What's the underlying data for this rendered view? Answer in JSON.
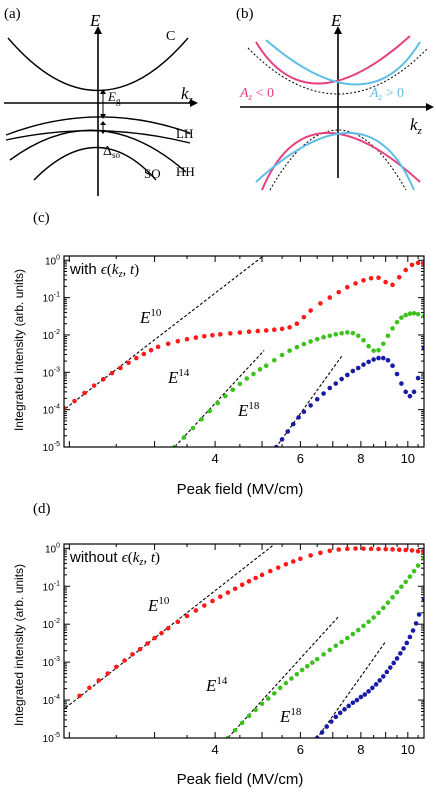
{
  "panels": {
    "a": {
      "label": "(a)",
      "axis_e": "E",
      "axis_k": "k",
      "axis_k_sub": "z",
      "band_c": "C",
      "band_lh": "LH",
      "band_hh": "HH",
      "band_so": "SO",
      "gap": "E",
      "gap_sub": "g",
      "split": "Δ",
      "split_sub": "so"
    },
    "b": {
      "label": "(b)",
      "axis_e": "E",
      "axis_k": "k",
      "axis_k_sub": "z",
      "left_label": "A",
      "left_label_sub": "z",
      "left_label_rel": " < 0",
      "right_label": "A",
      "right_label_sub": "z",
      "right_label_rel": " > 0"
    }
  },
  "colors": {
    "pink": "#e8407f",
    "blue": "#5cbfe6",
    "red": "#ff1a1a",
    "green": "#3cc21c",
    "navy": "#1a1aa8"
  },
  "chart_data": [
    {
      "panel": "(c)",
      "type": "scatter",
      "annotation": "with ϵ(k_z, t)",
      "annotation_parts": [
        "with ",
        "ϵ",
        "(",
        "k",
        "z",
        ", ",
        "t",
        ")"
      ],
      "xlabel": "Peak field (MV/cm)",
      "ylabel": "Integrated intensity (arb. units)",
      "xscale": "log",
      "yscale": "log",
      "xlim": [
        1.95,
        10.8
      ],
      "ylim": [
        1e-05,
        1.3
      ],
      "xticks": [
        4,
        6,
        8,
        10
      ],
      "yticks": [
        {
          "v": 1e-05,
          "b": "10",
          "e": "-5"
        },
        {
          "v": 0.0001,
          "b": "10",
          "e": "-4"
        },
        {
          "v": 0.001,
          "b": "10",
          "e": "-3"
        },
        {
          "v": 0.01,
          "b": "10",
          "e": "-2"
        },
        {
          "v": 0.1,
          "b": "10",
          "e": "-1"
        },
        {
          "v": 1,
          "b": "10",
          "e": "0"
        }
      ],
      "series": [
        {
          "name": "E10",
          "power": 10,
          "color": "#ff1a1a",
          "x": [
            1.95,
            2.05,
            2.15,
            2.25,
            2.35,
            2.45,
            2.55,
            2.65,
            2.75,
            2.85,
            2.95,
            3.05,
            3.2,
            3.35,
            3.5,
            3.65,
            3.8,
            3.95,
            4.1,
            4.3,
            4.5,
            4.7,
            4.9,
            5.1,
            5.3,
            5.5,
            5.7,
            5.9,
            6.1,
            6.3,
            6.6,
            6.9,
            7.2,
            7.5,
            7.8,
            8.1,
            8.4,
            8.7,
            9.0,
            9.3,
            9.6,
            9.9,
            10.2,
            10.5,
            10.8
          ],
          "y": [
            0.00011,
            0.00017,
            0.00028,
            0.00044,
            0.00065,
            0.00095,
            0.0013,
            0.0018,
            0.0024,
            0.0031,
            0.0039,
            0.0048,
            0.0058,
            0.0068,
            0.0077,
            0.0085,
            0.0092,
            0.0098,
            0.0104,
            0.011,
            0.0116,
            0.0122,
            0.0127,
            0.0132,
            0.0138,
            0.0146,
            0.016,
            0.02,
            0.03,
            0.045,
            0.07,
            0.1,
            0.14,
            0.19,
            0.24,
            0.29,
            0.33,
            0.34,
            0.26,
            0.22,
            0.35,
            0.55,
            0.75,
            0.85,
            0.8
          ]
        },
        {
          "name": "E14",
          "power": 14,
          "color": "#3cc21c",
          "x": [
            3.3,
            3.45,
            3.6,
            3.75,
            3.9,
            4.05,
            4.2,
            4.35,
            4.5,
            4.65,
            4.8,
            4.95,
            5.1,
            5.3,
            5.5,
            5.7,
            5.9,
            6.1,
            6.3,
            6.5,
            6.7,
            6.9,
            7.1,
            7.3,
            7.5,
            7.7,
            7.9,
            8.1,
            8.3,
            8.5,
            8.7,
            8.9,
            9.1,
            9.3,
            9.5,
            9.7,
            9.9,
            10.1,
            10.3,
            10.5,
            10.8
          ],
          "y": [
            1e-05,
            1.8e-05,
            3.2e-05,
            5.5e-05,
            9.2e-05,
            0.00015,
            0.00023,
            0.00034,
            0.00049,
            0.00068,
            0.0009,
            0.0012,
            0.0015,
            0.0021,
            0.0029,
            0.0038,
            0.0047,
            0.0057,
            0.0067,
            0.0077,
            0.0087,
            0.0095,
            0.0104,
            0.0111,
            0.0117,
            0.0112,
            0.0095,
            0.0072,
            0.005,
            0.0038,
            0.0039,
            0.0058,
            0.0095,
            0.015,
            0.022,
            0.029,
            0.034,
            0.037,
            0.038,
            0.036,
            0.032
          ]
        },
        {
          "name": "E18",
          "power": 18,
          "color": "#1a1aa8",
          "x": [
            5.35,
            5.5,
            5.65,
            5.8,
            5.95,
            6.1,
            6.3,
            6.5,
            6.7,
            6.9,
            7.1,
            7.3,
            7.5,
            7.7,
            7.9,
            8.1,
            8.3,
            8.5,
            8.7,
            8.9,
            9.1,
            9.3,
            9.5,
            9.7,
            9.9,
            10.1,
            10.3,
            10.5,
            10.8
          ],
          "y": [
            1e-05,
            1.6e-05,
            2.6e-05,
            4.1e-05,
            6.2e-05,
            8.8e-05,
            0.00013,
            0.00019,
            0.00027,
            0.00038,
            0.0005,
            0.00066,
            0.00085,
            0.00108,
            0.0013,
            0.0016,
            0.0019,
            0.0022,
            0.0024,
            0.0024,
            0.0021,
            0.0015,
            0.0009,
            0.0005,
            0.0003,
            0.00023,
            0.0003,
            0.0007,
            0.0045
          ]
        }
      ],
      "guides": [
        {
          "power": 10,
          "label": "E",
          "exp": "10",
          "anchor": [
            1.95,
            0.0001
          ],
          "x_end": 7.6
        },
        {
          "power": 14,
          "label": "E",
          "exp": "14",
          "anchor": [
            3.3,
            1e-05
          ],
          "x_end": 5.05
        },
        {
          "power": 18,
          "label": "E",
          "exp": "18",
          "anchor": [
            5.35,
            1e-05
          ],
          "x_end": 7.3
        }
      ]
    },
    {
      "panel": "(d)",
      "type": "scatter",
      "annotation": "without ϵ(k_z, t)",
      "annotation_parts": [
        "without ",
        "ϵ",
        "(",
        "k",
        "z",
        ", ",
        "t",
        ")"
      ],
      "xlabel": "Peak field (MV/cm)",
      "ylabel": "Integrated intensity (arb. units)",
      "xscale": "log",
      "yscale": "log",
      "xlim": [
        1.95,
        10.8
      ],
      "ylim": [
        1e-05,
        1.3
      ],
      "xticks": [
        4,
        6,
        8,
        10
      ],
      "yticks": [
        {
          "v": 1e-05,
          "b": "10",
          "e": "-5"
        },
        {
          "v": 0.0001,
          "b": "10",
          "e": "-4"
        },
        {
          "v": 0.001,
          "b": "10",
          "e": "-3"
        },
        {
          "v": 0.01,
          "b": "10",
          "e": "-2"
        },
        {
          "v": 0.1,
          "b": "10",
          "e": "-1"
        },
        {
          "v": 1,
          "b": "10",
          "e": "0"
        }
      ],
      "series": [
        {
          "name": "E10",
          "power": 10,
          "color": "#ff1a1a",
          "x": [
            2.1,
            2.2,
            2.3,
            2.4,
            2.5,
            2.6,
            2.7,
            2.8,
            2.9,
            3.0,
            3.1,
            3.2,
            3.35,
            3.5,
            3.65,
            3.8,
            3.95,
            4.1,
            4.25,
            4.4,
            4.55,
            4.7,
            4.85,
            5.0,
            5.2,
            5.4,
            5.6,
            5.8,
            6.0,
            6.3,
            6.6,
            6.9,
            7.2,
            7.5,
            7.8,
            8.1,
            8.4,
            8.7,
            9.0,
            9.3,
            9.6,
            9.9,
            10.2,
            10.5,
            10.8
          ],
          "y": [
            0.00013,
            0.00021,
            0.00033,
            0.0005,
            0.00075,
            0.0011,
            0.0016,
            0.0022,
            0.0031,
            0.0043,
            0.0058,
            0.0078,
            0.0115,
            0.0165,
            0.023,
            0.031,
            0.041,
            0.053,
            0.068,
            0.086,
            0.11,
            0.135,
            0.165,
            0.2,
            0.25,
            0.31,
            0.38,
            0.45,
            0.53,
            0.65,
            0.76,
            0.86,
            0.93,
            0.97,
            0.99,
            0.98,
            0.97,
            0.96,
            0.95,
            0.94,
            0.92,
            0.9,
            0.88,
            0.84,
            0.8
          ]
        },
        {
          "name": "E14",
          "power": 14,
          "color": "#3cc21c",
          "x": [
            4.25,
            4.4,
            4.55,
            4.7,
            4.85,
            5.0,
            5.15,
            5.3,
            5.45,
            5.6,
            5.75,
            5.9,
            6.05,
            6.2,
            6.35,
            6.5,
            6.7,
            6.9,
            7.1,
            7.3,
            7.5,
            7.7,
            7.9,
            8.1,
            8.3,
            8.5,
            8.7,
            8.9,
            9.1,
            9.3,
            9.5,
            9.7,
            9.9,
            10.1,
            10.3,
            10.5,
            10.8
          ],
          "y": [
            1e-05,
            1.6e-05,
            2.5e-05,
            3.8e-05,
            5.5e-05,
            8e-05,
            0.00011,
            0.00015,
            0.00021,
            0.00028,
            0.00037,
            0.00048,
            0.00062,
            0.00078,
            0.00097,
            0.0012,
            0.0016,
            0.0021,
            0.0027,
            0.0034,
            0.0043,
            0.0055,
            0.007,
            0.009,
            0.0116,
            0.015,
            0.02,
            0.027,
            0.037,
            0.051,
            0.07,
            0.097,
            0.13,
            0.18,
            0.25,
            0.35,
            0.55
          ]
        },
        {
          "name": "E18",
          "power": 18,
          "color": "#1a1aa8",
          "x": [
            6.5,
            6.65,
            6.8,
            6.95,
            7.1,
            7.25,
            7.4,
            7.55,
            7.7,
            7.85,
            8.0,
            8.15,
            8.3,
            8.45,
            8.6,
            8.75,
            8.9,
            9.05,
            9.2,
            9.35,
            9.5,
            9.65,
            9.8,
            9.95,
            10.1,
            10.25,
            10.4,
            10.55,
            10.8
          ],
          "y": [
            1e-05,
            1.4e-05,
            2e-05,
            2.7e-05,
            3.6e-05,
            4.6e-05,
            5.7e-05,
            7e-05,
            8.5e-05,
            0.0001,
            0.00012,
            0.00014,
            0.00017,
            0.00021,
            0.00026,
            0.00033,
            0.00042,
            0.00055,
            0.00072,
            0.00095,
            0.00125,
            0.0017,
            0.0023,
            0.0032,
            0.0046,
            0.0068,
            0.0105,
            0.018,
            0.045
          ]
        }
      ],
      "guides": [
        {
          "power": 10,
          "label": "E",
          "exp": "10",
          "anchor": [
            1.95,
            5.8e-05
          ],
          "x_end": 7.4
        },
        {
          "power": 14,
          "label": "E",
          "exp": "14",
          "anchor": [
            4.25,
            1e-05
          ],
          "x_end": 7.2
        },
        {
          "power": 18,
          "label": "E",
          "exp": "18",
          "anchor": [
            6.5,
            1e-05
          ],
          "x_end": 9.0
        }
      ]
    }
  ]
}
